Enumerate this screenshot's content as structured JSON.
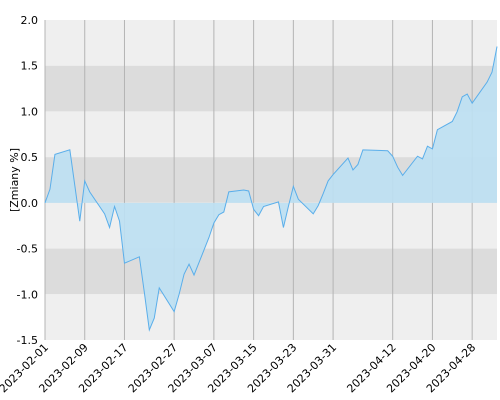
{
  "chart_data": {
    "type": "area",
    "title": "",
    "xlabel": "",
    "ylabel": "[Zmiany %]",
    "ylim": [
      -1.5,
      2.0
    ],
    "y_ticks": [
      "-1.5",
      "-1.0",
      "-0.5",
      "0.0",
      "0.5",
      "1.0",
      "1.5",
      "2.0"
    ],
    "x_ticks": [
      "2023-02-01",
      "2023-02-09",
      "2023-02-17",
      "2023-02-27",
      "2023-03-07",
      "2023-03-15",
      "2023-03-23",
      "2023-03-31",
      "2023-04-12",
      "2023-04-20",
      "2023-04-28"
    ],
    "grid": true,
    "colors": {
      "line": "#5aaeea",
      "fill": "#bde0f2",
      "band_dark": "#dcdcdc",
      "band_light": "#efefef"
    },
    "series": [
      {
        "x": [
          "2023-02-01",
          "2023-02-02",
          "2023-02-03",
          "2023-02-06",
          "2023-02-07",
          "2023-02-08",
          "2023-02-09",
          "2023-02-10",
          "2023-02-13",
          "2023-02-14",
          "2023-02-15",
          "2023-02-16",
          "2023-02-17",
          "2023-02-20",
          "2023-02-21",
          "2023-02-22",
          "2023-02-23",
          "2023-02-24",
          "2023-02-27",
          "2023-02-28",
          "2023-03-01",
          "2023-03-02",
          "2023-03-03",
          "2023-03-06",
          "2023-03-07",
          "2023-03-08",
          "2023-03-09",
          "2023-03-10",
          "2023-03-13",
          "2023-03-14",
          "2023-03-15",
          "2023-03-16",
          "2023-03-17",
          "2023-03-20",
          "2023-03-21",
          "2023-03-22",
          "2023-03-23",
          "2023-03-24",
          "2023-03-27",
          "2023-03-28",
          "2023-03-29",
          "2023-03-30",
          "2023-03-31",
          "2023-04-03",
          "2023-04-04",
          "2023-04-05",
          "2023-04-06",
          "2023-04-11",
          "2023-04-12",
          "2023-04-13",
          "2023-04-14",
          "2023-04-17",
          "2023-04-18",
          "2023-04-19",
          "2023-04-20",
          "2023-04-21",
          "2023-04-24",
          "2023-04-25",
          "2023-04-26",
          "2023-04-27",
          "2023-04-28",
          "2023-05-01",
          "2023-05-02",
          "2023-05-03"
        ],
        "values": [
          0.0,
          0.15,
          0.53,
          0.58,
          0.19,
          -0.2,
          0.24,
          0.12,
          -0.12,
          -0.27,
          -0.04,
          -0.2,
          -0.66,
          -0.59,
          -0.98,
          -1.39,
          -1.26,
          -0.93,
          -1.19,
          -1.0,
          -0.78,
          -0.67,
          -0.79,
          -0.38,
          -0.22,
          -0.13,
          -0.1,
          0.12,
          0.14,
          0.13,
          -0.07,
          -0.14,
          -0.04,
          0.01,
          -0.27,
          -0.04,
          0.18,
          0.04,
          -0.12,
          -0.03,
          0.1,
          0.24,
          0.31,
          0.49,
          0.36,
          0.42,
          0.58,
          0.57,
          0.51,
          0.39,
          0.3,
          0.51,
          0.48,
          0.62,
          0.59,
          0.8,
          0.89,
          1.0,
          1.16,
          1.19,
          1.09,
          1.32,
          1.43,
          1.71
        ]
      }
    ]
  }
}
